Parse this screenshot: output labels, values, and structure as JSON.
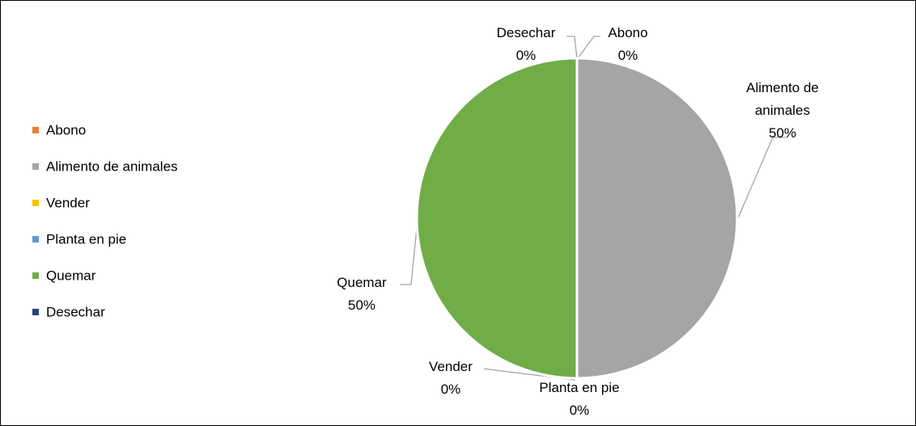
{
  "chart_data": {
    "type": "pie",
    "categories": [
      "Abono",
      "Alimento de animales",
      "Vender",
      "Planta en pie",
      "Quemar",
      "Desechar"
    ],
    "values": [
      0,
      50,
      0,
      0,
      50,
      0
    ],
    "value_labels": [
      "0%",
      "50%",
      "0%",
      "0%",
      "50%",
      "0%"
    ],
    "colors": [
      "#ED7D31",
      "#A5A5A5",
      "#FFC000",
      "#5B9BD5",
      "#70AD47",
      "#264478"
    ],
    "legend": "left"
  }
}
